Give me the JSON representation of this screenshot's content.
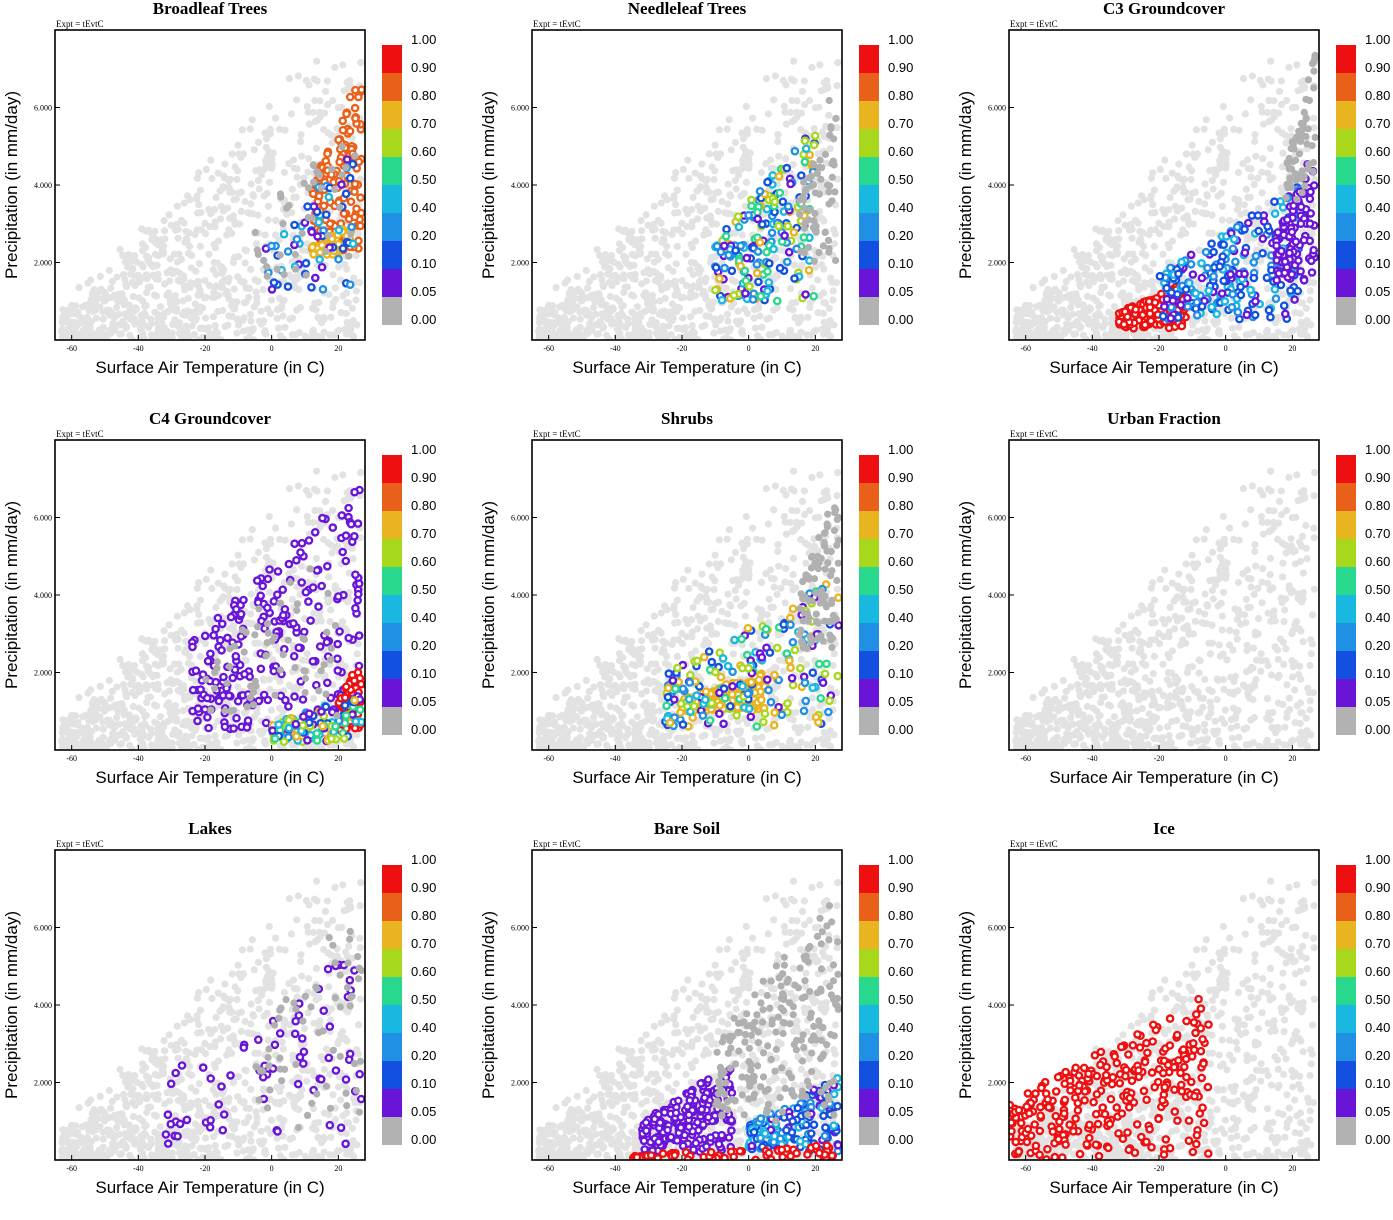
{
  "experiment_label": "Expt = tEvtC",
  "shared_axes": {
    "xlabel": "Surface Air Temperature (in C)",
    "ylabel": "Precipitation (in mm/day)",
    "xlim": [
      -65,
      28
    ],
    "ylim": [
      0,
      8000
    ],
    "xticks": [
      -60,
      -40,
      -20,
      0,
      20
    ],
    "xtick_labels": [
      "-60",
      "-40",
      "-20",
      "0",
      "20"
    ],
    "yticks": [
      2000,
      4000,
      6000
    ],
    "ytick_labels": [
      "2.000",
      "4.000",
      "6.000"
    ]
  },
  "colorbar": {
    "labels": [
      "1.00",
      "0.90",
      "0.80",
      "0.70",
      "0.60",
      "0.50",
      "0.40",
      "0.20",
      "0.10",
      "0.05",
      "0.00"
    ],
    "colors": [
      "#ee1010",
      "#e8601a",
      "#e8b420",
      "#a8d81c",
      "#28d88c",
      "#18b8e0",
      "#2090e4",
      "#1450e0",
      "#6a14d8",
      "#b2b2b2"
    ],
    "background_point_color": "#e2e2e2",
    "zero_point_color": "#b0b0b0"
  },
  "chart_data": [
    {
      "type": "scatter",
      "title": "Broadleaf Trees",
      "variable": "broadleaf_fraction",
      "clusters": [
        {
          "color_class": "orange",
          "t_range": [
            12,
            27
          ],
          "p_range": [
            2300,
            7000
          ],
          "count": 140
        },
        {
          "color_class": "yellow",
          "t_range": [
            12,
            24
          ],
          "p_range": [
            2100,
            3000
          ],
          "count": 35
        },
        {
          "color_class": "blue",
          "t_range": [
            -2,
            25
          ],
          "p_range": [
            1200,
            5000
          ],
          "count": 60
        },
        {
          "color_class": "gray",
          "t_range": [
            -5,
            25
          ],
          "p_range": [
            1500,
            6000
          ],
          "count": 40
        }
      ]
    },
    {
      "type": "scatter",
      "title": "Needleleaf Trees",
      "variable": "needleleaf_fraction",
      "clusters": [
        {
          "color_class": "mixed",
          "t_range": [
            -10,
            20
          ],
          "p_range": [
            1000,
            5500
          ],
          "count": 200
        },
        {
          "color_class": "gray",
          "t_range": [
            15,
            27
          ],
          "p_range": [
            2000,
            7000
          ],
          "count": 60
        }
      ]
    },
    {
      "type": "scatter",
      "title": "C3 Groundcover",
      "variable": "c3_fraction",
      "clusters": [
        {
          "color_class": "red",
          "t_range": [
            -32,
            -12
          ],
          "p_range": [
            300,
            1500
          ],
          "count": 150
        },
        {
          "color_class": "blue",
          "t_range": [
            -20,
            22
          ],
          "p_range": [
            500,
            4000
          ],
          "count": 250
        },
        {
          "color_class": "purple",
          "t_range": [
            15,
            27
          ],
          "p_range": [
            1500,
            5000
          ],
          "count": 90
        },
        {
          "color_class": "gray",
          "t_range": [
            18,
            27
          ],
          "p_range": [
            3500,
            7500
          ],
          "count": 60
        }
      ]
    },
    {
      "type": "scatter",
      "title": "C4 Groundcover",
      "variable": "c4_fraction",
      "clusters": [
        {
          "color_class": "purple",
          "t_range": [
            -24,
            27
          ],
          "p_range": [
            500,
            7000
          ],
          "count": 230
        },
        {
          "color_class": "red",
          "t_range": [
            20,
            27
          ],
          "p_range": [
            500,
            2500
          ],
          "count": 70
        },
        {
          "color_class": "mixed",
          "t_range": [
            0,
            27
          ],
          "p_range": [
            200,
            1500
          ],
          "count": 120
        },
        {
          "color_class": "gray",
          "t_range": [
            -20,
            20
          ],
          "p_range": [
            800,
            5500
          ],
          "count": 60
        }
      ]
    },
    {
      "type": "scatter",
      "title": "Shrubs",
      "variable": "shrub_fraction",
      "clusters": [
        {
          "color_class": "yellow",
          "t_range": [
            -20,
            5
          ],
          "p_range": [
            1000,
            2000
          ],
          "count": 150
        },
        {
          "color_class": "mixed",
          "t_range": [
            -25,
            27
          ],
          "p_range": [
            600,
            4500
          ],
          "count": 200
        },
        {
          "color_class": "gray",
          "t_range": [
            15,
            27
          ],
          "p_range": [
            2500,
            7000
          ],
          "count": 90
        }
      ]
    },
    {
      "type": "scatter",
      "title": "Urban Fraction",
      "variable": "urban_fraction",
      "clusters": []
    },
    {
      "type": "scatter",
      "title": "Lakes",
      "variable": "lake_fraction",
      "clusters": [
        {
          "color_class": "purple",
          "t_range": [
            -32,
            27
          ],
          "p_range": [
            400,
            5500
          ],
          "count": 70
        },
        {
          "color_class": "gray",
          "t_range": [
            -5,
            27
          ],
          "p_range": [
            800,
            7000
          ],
          "count": 60
        }
      ]
    },
    {
      "type": "scatter",
      "title": "Bare Soil",
      "variable": "baresoil_fraction",
      "clusters": [
        {
          "color_class": "purple",
          "t_range": [
            -32,
            -5
          ],
          "p_range": [
            200,
            2500
          ],
          "count": 200
        },
        {
          "color_class": "blue",
          "t_range": [
            0,
            27
          ],
          "p_range": [
            200,
            2200
          ],
          "count": 150
        },
        {
          "color_class": "red",
          "t_range": [
            -35,
            27
          ],
          "p_range": [
            0,
            400
          ],
          "count": 60
        },
        {
          "color_class": "gray",
          "t_range": [
            -10,
            27
          ],
          "p_range": [
            1000,
            7000
          ],
          "count": 200
        }
      ]
    },
    {
      "type": "scatter",
      "title": "Ice",
      "variable": "ice_fraction",
      "clusters": [
        {
          "color_class": "red",
          "t_range": [
            -65,
            -5
          ],
          "p_range": [
            0,
            4300
          ],
          "count": 300
        }
      ]
    }
  ]
}
